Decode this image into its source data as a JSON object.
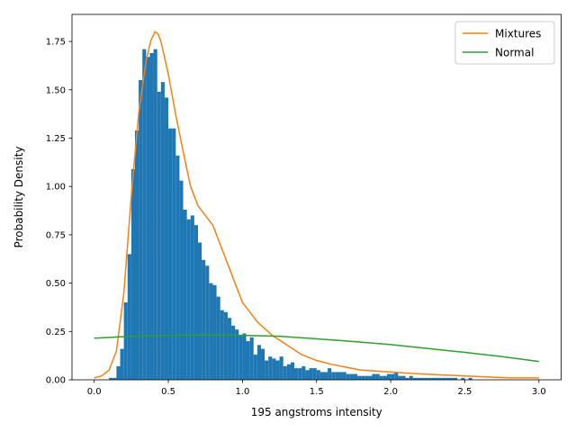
{
  "chart_data": {
    "type": "bar",
    "title": "",
    "xlabel": "195 angstroms intensity",
    "ylabel": "Probability Density",
    "xlim": [
      -0.15,
      3.15
    ],
    "ylim": [
      0,
      1.89
    ],
    "x_ticks": [
      "0.0",
      "0.5",
      "1.0",
      "1.5",
      "2.0",
      "2.5",
      "3.0"
    ],
    "y_ticks": [
      "0.00",
      "0.25",
      "0.50",
      "0.75",
      "1.00",
      "1.25",
      "1.50",
      "1.75"
    ],
    "grid": false,
    "legend_position": "top-right",
    "histogram": {
      "color": "#1f77b4",
      "bin_start": 0.1,
      "bin_width": 0.025,
      "values": [
        0.01,
        0.01,
        0.07,
        0.16,
        0.4,
        0.65,
        1.09,
        1.29,
        1.55,
        1.71,
        1.67,
        1.69,
        1.71,
        1.49,
        1.54,
        1.46,
        1.3,
        1.3,
        1.16,
        1.03,
        0.88,
        0.83,
        0.85,
        0.8,
        0.71,
        0.62,
        0.59,
        0.5,
        0.49,
        0.43,
        0.36,
        0.35,
        0.32,
        0.28,
        0.26,
        0.23,
        0.24,
        0.2,
        0.22,
        0.13,
        0.18,
        0.16,
        0.1,
        0.12,
        0.11,
        0.1,
        0.12,
        0.07,
        0.08,
        0.09,
        0.06,
        0.06,
        0.07,
        0.05,
        0.06,
        0.06,
        0.05,
        0.04,
        0.04,
        0.06,
        0.04,
        0.04,
        0.04,
        0.04,
        0.03,
        0.03,
        0.03,
        0.02,
        0.02,
        0.02,
        0.02,
        0.03,
        0.03,
        0.02,
        0.02,
        0.03,
        0.03,
        0.04,
        0.02,
        0.02,
        0.01,
        0.02,
        0.01,
        0.01,
        0.01,
        0.01,
        0.01,
        0.01,
        0.01,
        0.01,
        0.01,
        0.01,
        0.01,
        0.01,
        0.0,
        0.01,
        0.0,
        0.01,
        0.0,
        0.0,
        0.0,
        0.0,
        0.0,
        0.0,
        0.0,
        0.0,
        0.0,
        0.0,
        0.0,
        0.0,
        0.0,
        0.0,
        0.0,
        0.0,
        0.0,
        0.0
      ]
    },
    "series": [
      {
        "name": "Mixtures",
        "color": "#ff7f0e",
        "x": [
          0,
          0.05,
          0.1,
          0.15,
          0.2,
          0.25,
          0.3,
          0.35,
          0.38,
          0.41,
          0.43,
          0.45,
          0.5,
          0.55,
          0.6,
          0.65,
          0.7,
          0.75,
          0.8,
          0.9,
          1.0,
          1.1,
          1.2,
          1.3,
          1.4,
          1.5,
          1.6,
          1.8,
          2.0,
          2.2,
          2.5,
          2.8,
          3.0
        ],
        "y": [
          0.01,
          0.02,
          0.05,
          0.15,
          0.45,
          0.95,
          1.38,
          1.65,
          1.75,
          1.8,
          1.79,
          1.75,
          1.58,
          1.37,
          1.18,
          1.0,
          0.9,
          0.85,
          0.8,
          0.6,
          0.4,
          0.3,
          0.23,
          0.18,
          0.13,
          0.1,
          0.08,
          0.05,
          0.04,
          0.03,
          0.02,
          0.01,
          0.01
        ]
      },
      {
        "name": "Normal",
        "color": "#2ca02c",
        "x": [
          0,
          0.25,
          0.5,
          0.75,
          1.0,
          1.25,
          1.5,
          1.75,
          2.0,
          2.25,
          2.5,
          2.75,
          3.0
        ],
        "y": [
          0.215,
          0.225,
          0.23,
          0.232,
          0.23,
          0.225,
          0.212,
          0.198,
          0.182,
          0.162,
          0.142,
          0.12,
          0.095
        ]
      }
    ]
  }
}
